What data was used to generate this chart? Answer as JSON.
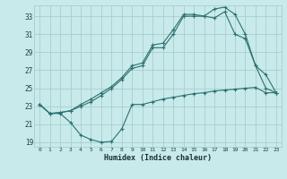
{
  "xlabel": "Humidex (Indice chaleur)",
  "bg_color": "#c8eaea",
  "grid_color": "#a8cece",
  "line_color": "#2d7070",
  "xlim": [
    -0.5,
    23.5
  ],
  "ylim": [
    18.5,
    34.2
  ],
  "yticks": [
    19,
    21,
    23,
    25,
    27,
    29,
    31,
    33
  ],
  "xticks": [
    0,
    1,
    2,
    3,
    4,
    5,
    6,
    7,
    8,
    9,
    10,
    11,
    12,
    13,
    14,
    15,
    16,
    17,
    18,
    19,
    20,
    21,
    22,
    23
  ],
  "line1_x": [
    0,
    1,
    2,
    3,
    4,
    5,
    6,
    7,
    8,
    9,
    10,
    11,
    12,
    13,
    14,
    15,
    16,
    17,
    18,
    19,
    20,
    21,
    22,
    23
  ],
  "line1_y": [
    23.2,
    22.2,
    22.2,
    21.2,
    19.8,
    19.3,
    19.0,
    19.1,
    20.5,
    23.2,
    23.2,
    23.5,
    23.8,
    24.0,
    24.2,
    24.4,
    24.5,
    24.7,
    24.8,
    24.9,
    25.0,
    25.1,
    24.5,
    24.5
  ],
  "line2_x": [
    0,
    1,
    2,
    3,
    4,
    5,
    6,
    7,
    8,
    9,
    10,
    11,
    12,
    13,
    14,
    15,
    16,
    17,
    18,
    19,
    20,
    21,
    22,
    23
  ],
  "line2_y": [
    23.2,
    22.2,
    22.3,
    22.5,
    23.0,
    23.5,
    24.2,
    25.0,
    26.0,
    27.2,
    27.5,
    29.5,
    29.5,
    31.0,
    33.0,
    33.0,
    33.0,
    32.8,
    33.5,
    31.0,
    30.5,
    27.5,
    26.5,
    24.5
  ],
  "line3_x": [
    0,
    1,
    2,
    3,
    4,
    5,
    6,
    7,
    8,
    9,
    10,
    11,
    12,
    13,
    14,
    15,
    16,
    17,
    18,
    19,
    20,
    21,
    22,
    23
  ],
  "line3_y": [
    23.2,
    22.2,
    22.3,
    22.5,
    23.2,
    23.8,
    24.5,
    25.2,
    26.2,
    27.5,
    27.8,
    29.8,
    30.0,
    31.5,
    33.2,
    33.2,
    33.0,
    33.8,
    34.0,
    33.2,
    31.0,
    27.5,
    25.0,
    24.5
  ]
}
